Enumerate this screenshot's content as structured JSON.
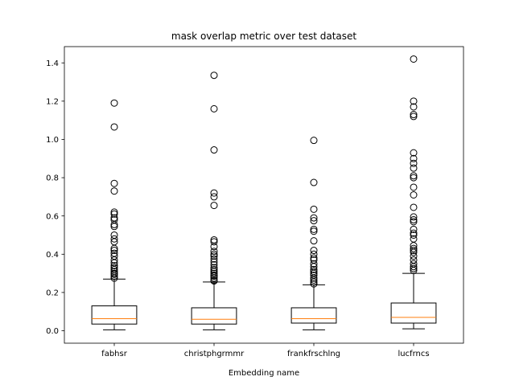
{
  "chart_data": {
    "type": "boxplot",
    "title": "mask overlap metric over test dataset",
    "xlabel": "Embedding name",
    "ylabel": "",
    "categories": [
      "fabhsr",
      "christphgrmmr",
      "frankfrschlng",
      "lucfrncs"
    ],
    "ylim": [
      -0.065,
      1.485
    ],
    "yticks": [
      0.0,
      0.2,
      0.4,
      0.6,
      0.8,
      1.0,
      1.2,
      1.4
    ],
    "ytick_labels": [
      "0.0",
      "0.2",
      "0.4",
      "0.6",
      "0.8",
      "1.0",
      "1.2",
      "1.4"
    ],
    "grid": false,
    "boxes": [
      {
        "name": "fabhsr",
        "whisker_low": 0.005,
        "q1": 0.035,
        "median": 0.063,
        "q3": 0.13,
        "whisker_high": 0.27,
        "outliers": [
          1.19,
          1.065,
          0.77,
          0.73,
          0.62,
          0.61,
          0.59,
          0.58,
          0.555,
          0.545,
          0.5,
          0.48,
          0.465,
          0.43,
          0.42,
          0.405,
          0.39,
          0.37,
          0.355,
          0.34,
          0.33,
          0.32,
          0.31,
          0.3,
          0.295,
          0.285,
          0.275
        ]
      },
      {
        "name": "christphgrmmr",
        "whisker_low": 0.005,
        "q1": 0.035,
        "median": 0.06,
        "q3": 0.12,
        "whisker_high": 0.255,
        "outliers": [
          1.335,
          1.16,
          0.945,
          0.72,
          0.7,
          0.655,
          0.475,
          0.465,
          0.44,
          0.415,
          0.4,
          0.39,
          0.375,
          0.36,
          0.345,
          0.33,
          0.32,
          0.31,
          0.3,
          0.29,
          0.285,
          0.275,
          0.265,
          0.26
        ]
      },
      {
        "name": "frankfrschlng",
        "whisker_low": 0.005,
        "q1": 0.04,
        "median": 0.063,
        "q3": 0.12,
        "whisker_high": 0.24,
        "outliers": [
          0.995,
          0.775,
          0.635,
          0.59,
          0.575,
          0.53,
          0.52,
          0.47,
          0.42,
          0.4,
          0.38,
          0.37,
          0.35,
          0.335,
          0.32,
          0.31,
          0.3,
          0.29,
          0.275,
          0.265,
          0.255,
          0.245
        ]
      },
      {
        "name": "lucfrncs",
        "whisker_low": 0.01,
        "q1": 0.04,
        "median": 0.07,
        "q3": 0.145,
        "whisker_high": 0.3,
        "outliers": [
          1.42,
          1.2,
          1.17,
          1.13,
          1.12,
          0.93,
          0.9,
          0.875,
          0.85,
          0.81,
          0.8,
          0.75,
          0.71,
          0.645,
          0.595,
          0.58,
          0.57,
          0.53,
          0.51,
          0.5,
          0.48,
          0.445,
          0.43,
          0.42,
          0.41,
          0.39,
          0.37,
          0.35,
          0.335,
          0.325,
          0.315
        ]
      }
    ],
    "colors": {
      "box": "#000000",
      "median": "#ff7f0e",
      "flier_edge": "#000000",
      "background": "#ffffff"
    }
  }
}
